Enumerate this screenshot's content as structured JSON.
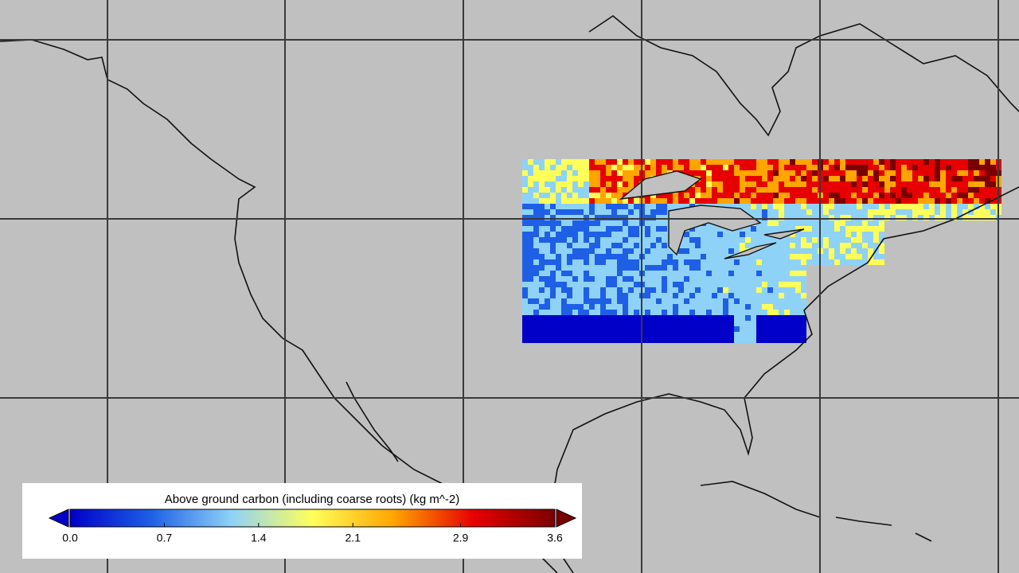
{
  "colorbar": {
    "title": "Above ground carbon (including coarse roots) (kg m^-2)",
    "lim": [
      0,
      3.6
    ],
    "ticks": [
      {
        "value": 0,
        "label": "0.0"
      },
      0.7,
      1.4,
      2.1,
      2.9,
      3.6
    ],
    "colormap": [
      "#0000c8",
      "#1e5fe6",
      "#8fd2f7",
      "#ffff5a",
      "#ffa500",
      "#e60000",
      "#7a0000"
    ]
  }
}
